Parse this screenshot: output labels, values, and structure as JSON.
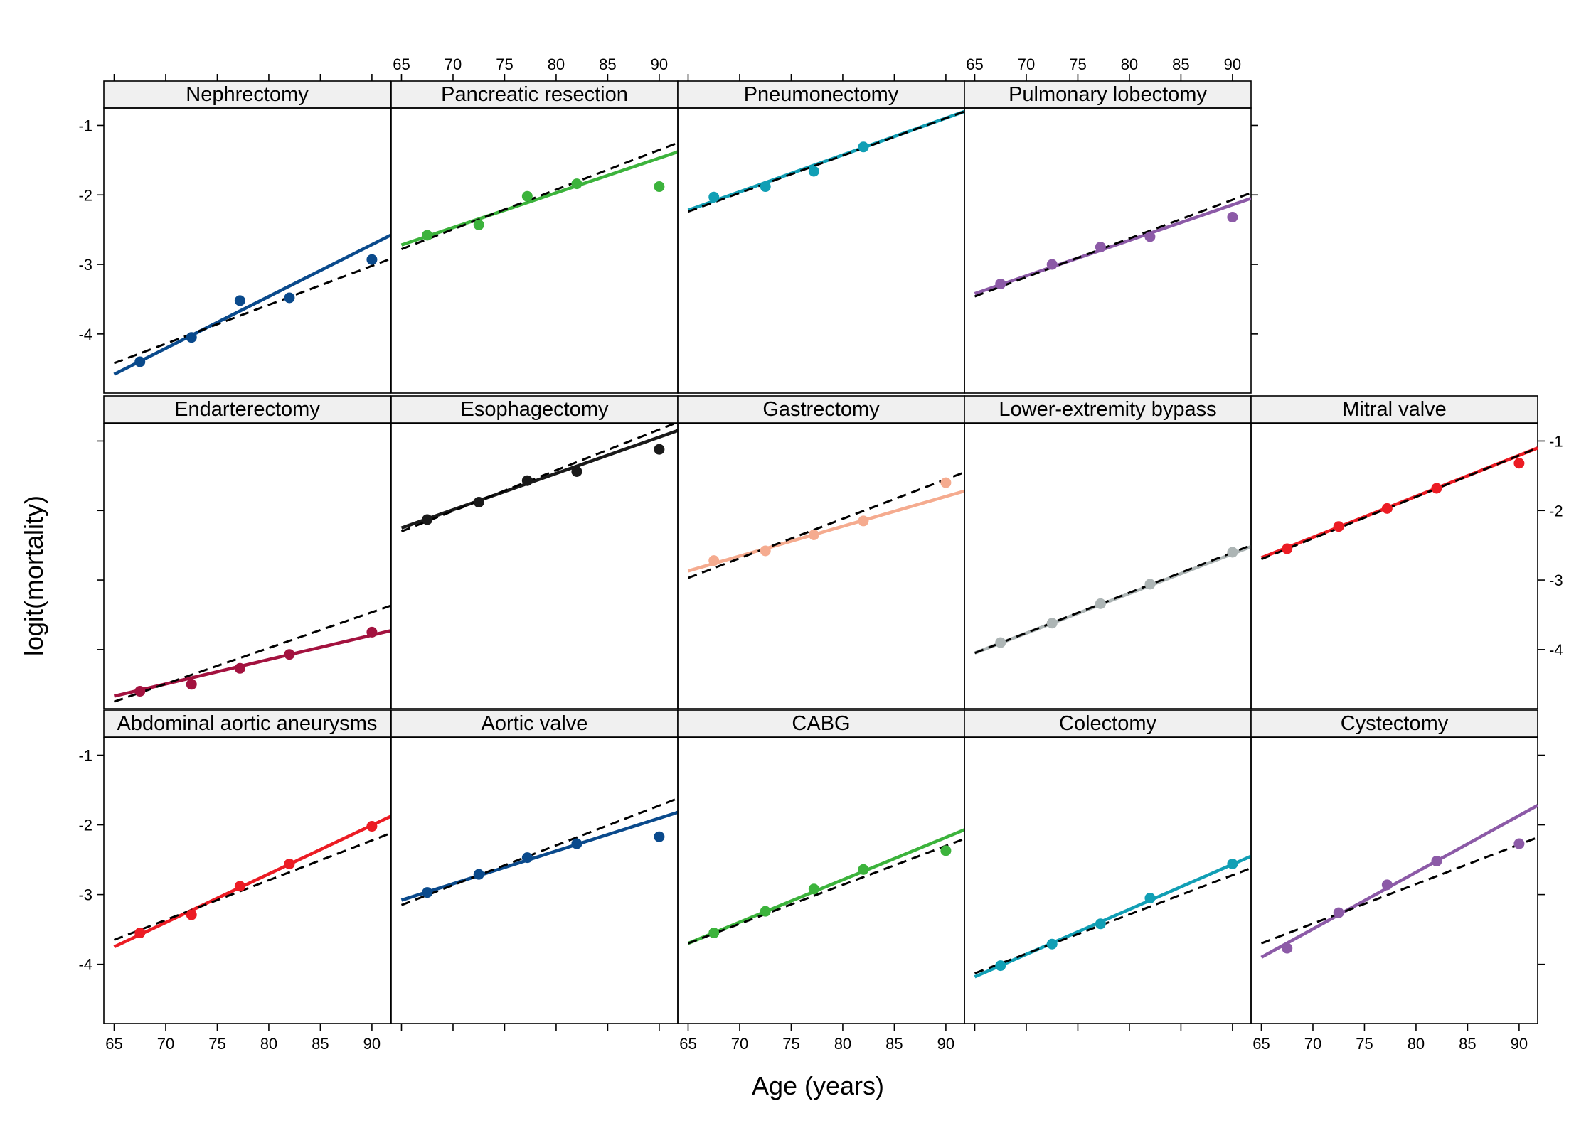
{
  "chart_data": {
    "type": "scatter",
    "xlabel": "Age (years)",
    "ylabel": "logit(mortality)",
    "xlim": [
      64,
      91.8
    ],
    "ylim": [
      -4.85,
      -0.75
    ],
    "x_ticks": [
      65,
      70,
      75,
      80,
      85,
      90
    ],
    "y_ticks": [
      -1,
      -2,
      -3,
      -4
    ],
    "x_tick_labels": [
      "65",
      "70",
      "75",
      "80",
      "85",
      "90"
    ],
    "y_tick_labels": [
      "-1",
      "-2",
      "-3",
      "-4"
    ],
    "grid": false,
    "layout": "3 rows x 5 columns of panels, top row has 4 panels",
    "line_styles": {
      "fitted": "solid colored line",
      "reference": "dashed black line"
    },
    "panels": [
      {
        "name": "Nephrectomy",
        "color": "#0a4a8c",
        "x": [
          67.5,
          72.5,
          77.2,
          82,
          90
        ],
        "y": [
          -4.4,
          -4.05,
          -3.52,
          -3.48,
          -2.93
        ],
        "solid": [
          [
            65,
            -4.58
          ],
          [
            91.8,
            -2.58
          ]
        ],
        "dashed": [
          [
            65,
            -4.42
          ],
          [
            91.8,
            -2.92
          ]
        ]
      },
      {
        "name": "Pancreatic resection",
        "color": "#3cb33c",
        "x": [
          67.5,
          72.5,
          77.2,
          82,
          90
        ],
        "y": [
          -2.58,
          -2.43,
          -2.02,
          -1.84,
          -1.88
        ],
        "solid": [
          [
            65,
            -2.72
          ],
          [
            91.8,
            -1.38
          ]
        ],
        "dashed": [
          [
            65,
            -2.78
          ],
          [
            91.8,
            -1.25
          ]
        ]
      },
      {
        "name": "Pneumonectomy",
        "color": "#119fb5",
        "x": [
          67.5,
          72.5,
          77.2,
          82
        ],
        "y": [
          -2.03,
          -1.88,
          -1.66,
          -1.31
        ],
        "solid": [
          [
            65,
            -2.22
          ],
          [
            91.8,
            -0.8
          ]
        ],
        "dashed": [
          [
            65,
            -2.24
          ],
          [
            91.8,
            -0.8
          ]
        ]
      },
      {
        "name": "Pulmonary lobectomy",
        "color": "#8c5aa7",
        "x": [
          67.5,
          72.5,
          77.2,
          82,
          90
        ],
        "y": [
          -3.28,
          -3.0,
          -2.75,
          -2.6,
          -2.32
        ],
        "solid": [
          [
            65,
            -3.42
          ],
          [
            91.8,
            -2.05
          ]
        ],
        "dashed": [
          [
            65,
            -3.46
          ],
          [
            91.8,
            -1.97
          ]
        ]
      },
      {
        "name": "Endarterectomy",
        "color": "#a3123f",
        "x": [
          67.5,
          72.5,
          77.2,
          82,
          90
        ],
        "y": [
          -4.6,
          -4.5,
          -4.27,
          -4.07,
          -3.75
        ],
        "solid": [
          [
            65,
            -4.67
          ],
          [
            91.8,
            -3.73
          ]
        ],
        "dashed": [
          [
            65,
            -4.75
          ],
          [
            91.8,
            -3.37
          ]
        ]
      },
      {
        "name": "Esophagectomy",
        "color": "#1a1a1a",
        "x": [
          67.5,
          72.5,
          77.2,
          82,
          90
        ],
        "y": [
          -2.13,
          -1.88,
          -1.57,
          -1.44,
          -1.12
        ],
        "solid": [
          [
            65,
            -2.25
          ],
          [
            91.8,
            -0.85
          ]
        ],
        "dashed": [
          [
            65,
            -2.3
          ],
          [
            91.8,
            -0.73
          ]
        ]
      },
      {
        "name": "Gastrectomy",
        "color": "#f5ab8f",
        "x": [
          67.5,
          72.5,
          77.2,
          82,
          90
        ],
        "y": [
          -2.72,
          -2.58,
          -2.35,
          -2.15,
          -1.6
        ],
        "solid": [
          [
            65,
            -2.87
          ],
          [
            91.8,
            -1.72
          ]
        ],
        "dashed": [
          [
            65,
            -2.97
          ],
          [
            91.8,
            -1.45
          ]
        ]
      },
      {
        "name": "Lower-extremity bypass",
        "color": "#adb5b5",
        "x": [
          67.5,
          72.5,
          77.2,
          82,
          90
        ],
        "y": [
          -3.9,
          -3.62,
          -3.34,
          -3.06,
          -2.6
        ],
        "solid": [
          [
            65,
            -4.05
          ],
          [
            91.8,
            -2.52
          ]
        ],
        "dashed": [
          [
            65,
            -4.05
          ],
          [
            91.8,
            -2.5
          ]
        ]
      },
      {
        "name": "Mitral valve",
        "color": "#ec1c24",
        "x": [
          67.5,
          72.5,
          77.2,
          82,
          90
        ],
        "y": [
          -2.55,
          -2.23,
          -1.97,
          -1.68,
          -1.32
        ],
        "solid": [
          [
            65,
            -2.68
          ],
          [
            91.8,
            -1.1
          ]
        ],
        "dashed": [
          [
            65,
            -2.7
          ],
          [
            91.8,
            -1.1
          ]
        ]
      },
      {
        "name": "Abdominal aortic aneurysms",
        "color": "#ec1c24",
        "x": [
          67.5,
          72.5,
          77.2,
          82,
          90
        ],
        "y": [
          -3.55,
          -3.29,
          -2.88,
          -2.56,
          -2.02
        ],
        "solid": [
          [
            65,
            -3.75
          ],
          [
            91.8,
            -1.88
          ]
        ],
        "dashed": [
          [
            65,
            -3.65
          ],
          [
            91.8,
            -2.12
          ]
        ]
      },
      {
        "name": "Aortic valve",
        "color": "#0a4a8c",
        "x": [
          67.5,
          72.5,
          77.2,
          82,
          90
        ],
        "y": [
          -2.97,
          -2.71,
          -2.47,
          -2.27,
          -2.17
        ],
        "solid": [
          [
            65,
            -3.08
          ],
          [
            91.8,
            -1.82
          ]
        ],
        "dashed": [
          [
            65,
            -3.15
          ],
          [
            91.8,
            -1.62
          ]
        ]
      },
      {
        "name": "CABG",
        "color": "#3cb33c",
        "x": [
          67.5,
          72.5,
          77.2,
          82,
          90
        ],
        "y": [
          -3.55,
          -3.24,
          -2.92,
          -2.64,
          -2.37
        ],
        "solid": [
          [
            65,
            -3.7
          ],
          [
            91.8,
            -2.07
          ]
        ],
        "dashed": [
          [
            65,
            -3.7
          ],
          [
            91.8,
            -2.2
          ]
        ]
      },
      {
        "name": "Colectomy",
        "color": "#119fb5",
        "x": [
          67.5,
          72.5,
          77.2,
          82,
          90
        ],
        "y": [
          -4.02,
          -3.71,
          -3.42,
          -3.05,
          -2.56
        ],
        "solid": [
          [
            65,
            -4.18
          ],
          [
            91.8,
            -2.45
          ]
        ],
        "dashed": [
          [
            65,
            -4.13
          ],
          [
            91.8,
            -2.62
          ]
        ]
      },
      {
        "name": "Cystectomy",
        "color": "#8c5aa7",
        "x": [
          67.5,
          72.5,
          77.2,
          82,
          90
        ],
        "y": [
          -3.77,
          -3.26,
          -2.86,
          -2.52,
          -2.27
        ],
        "solid": [
          [
            65,
            -3.9
          ],
          [
            91.8,
            -1.72
          ]
        ],
        "dashed": [
          [
            65,
            -3.7
          ],
          [
            91.8,
            -2.18
          ]
        ]
      }
    ]
  }
}
